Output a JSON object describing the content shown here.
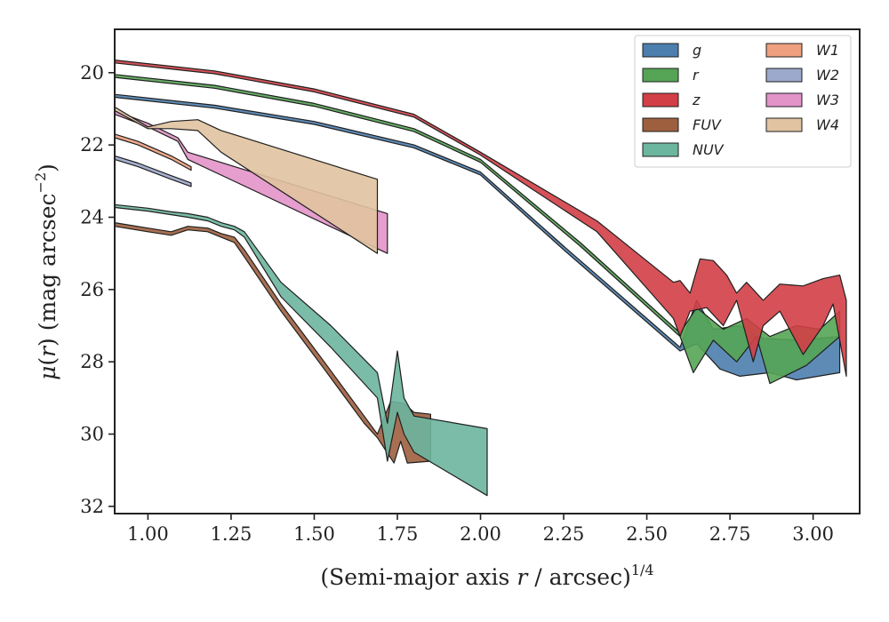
{
  "chart_data": {
    "type": "area",
    "title": "",
    "xlabel": "(Semi-major axis r / arcsec)",
    "xlabel_parts": {
      "prefix": "(Semi-major axis ",
      "var": "r",
      "mid": " / arcsec)",
      "sup": "1/4"
    },
    "ylabel": "μ(r) (mag arcsec−2)",
    "ylabel_parts": {
      "mu": "μ",
      "open": "(",
      "var": "r",
      "rest": ") (mag arcsec",
      "sup": "−2",
      "close": ")"
    },
    "xlim": [
      0.9,
      3.14
    ],
    "ylim": [
      32.2,
      18.8
    ],
    "y_inverted": true,
    "xticks": [
      "1.00",
      "1.25",
      "1.50",
      "1.75",
      "2.00",
      "2.25",
      "2.50",
      "2.75",
      "3.00"
    ],
    "xtick_values": [
      1.0,
      1.25,
      1.5,
      1.75,
      2.0,
      2.25,
      2.5,
      2.75,
      3.0
    ],
    "yticks": [
      "20",
      "22",
      "24",
      "26",
      "28",
      "30",
      "32"
    ],
    "ytick_values": [
      20,
      22,
      24,
      26,
      28,
      30,
      32
    ],
    "grid": false,
    "legend_position": "top-right",
    "legend_columns": 2,
    "legend": [
      "g",
      "r",
      "z",
      "FUV",
      "NUV",
      "W1",
      "W2",
      "W3",
      "W4"
    ],
    "series": [
      {
        "name": "g",
        "color": "#4C7EAE",
        "upper": [
          [
            0.9,
            20.6
          ],
          [
            1.2,
            20.9
          ],
          [
            1.5,
            21.35
          ],
          [
            1.8,
            22.0
          ],
          [
            2.0,
            22.75
          ],
          [
            2.25,
            24.8
          ],
          [
            2.6,
            27.6
          ],
          [
            2.65,
            26.3
          ],
          [
            2.7,
            27.1
          ],
          [
            2.78,
            27.0
          ],
          [
            2.85,
            27.35
          ],
          [
            2.95,
            27.4
          ],
          [
            3.08,
            27.3
          ]
        ],
        "lower": [
          [
            0.9,
            20.68
          ],
          [
            1.2,
            20.98
          ],
          [
            1.5,
            21.43
          ],
          [
            1.8,
            22.08
          ],
          [
            2.0,
            22.83
          ],
          [
            2.25,
            24.9
          ],
          [
            2.6,
            27.7
          ],
          [
            2.65,
            27.5
          ],
          [
            2.72,
            28.2
          ],
          [
            2.78,
            28.4
          ],
          [
            2.87,
            28.3
          ],
          [
            2.95,
            28.5
          ],
          [
            3.08,
            28.3
          ]
        ]
      },
      {
        "name": "r",
        "color": "#55A455",
        "upper": [
          [
            0.9,
            20.05
          ],
          [
            1.2,
            20.35
          ],
          [
            1.5,
            20.85
          ],
          [
            1.8,
            21.55
          ],
          [
            2.0,
            22.4
          ],
          [
            2.3,
            24.7
          ],
          [
            2.6,
            27.2
          ],
          [
            2.65,
            26.5
          ],
          [
            2.73,
            27.1
          ],
          [
            2.8,
            26.8
          ],
          [
            2.87,
            27.3
          ],
          [
            2.95,
            27.0
          ],
          [
            3.02,
            27.1
          ],
          [
            3.08,
            26.6
          ]
        ],
        "lower": [
          [
            0.9,
            20.13
          ],
          [
            1.2,
            20.43
          ],
          [
            1.5,
            20.93
          ],
          [
            1.8,
            21.63
          ],
          [
            2.0,
            22.48
          ],
          [
            2.3,
            24.8
          ],
          [
            2.6,
            27.3
          ],
          [
            2.64,
            28.3
          ],
          [
            2.7,
            27.4
          ],
          [
            2.77,
            28.0
          ],
          [
            2.83,
            27.3
          ],
          [
            2.87,
            28.6
          ],
          [
            2.98,
            28.1
          ],
          [
            3.08,
            27.3
          ]
        ]
      },
      {
        "name": "z",
        "color": "#D23F46",
        "upper": [
          [
            0.9,
            19.65
          ],
          [
            1.2,
            19.95
          ],
          [
            1.5,
            20.45
          ],
          [
            1.8,
            21.15
          ],
          [
            2.0,
            22.2
          ],
          [
            2.35,
            24.1
          ],
          [
            2.58,
            25.8
          ],
          [
            2.6,
            25.75
          ],
          [
            2.63,
            26.1
          ],
          [
            2.66,
            25.15
          ],
          [
            2.7,
            25.2
          ],
          [
            2.74,
            25.6
          ],
          [
            2.77,
            26.1
          ],
          [
            2.8,
            25.8
          ],
          [
            2.85,
            26.3
          ],
          [
            2.9,
            25.85
          ],
          [
            2.97,
            25.9
          ],
          [
            3.03,
            25.7
          ],
          [
            3.08,
            25.6
          ],
          [
            3.1,
            26.3
          ]
        ],
        "lower": [
          [
            0.9,
            19.73
          ],
          [
            1.2,
            20.03
          ],
          [
            1.5,
            20.53
          ],
          [
            1.8,
            21.23
          ],
          [
            2.0,
            22.28
          ],
          [
            2.35,
            24.4
          ],
          [
            2.58,
            26.8
          ],
          [
            2.6,
            27.3
          ],
          [
            2.63,
            26.6
          ],
          [
            2.68,
            26.5
          ],
          [
            2.73,
            27.0
          ],
          [
            2.77,
            26.3
          ],
          [
            2.82,
            28.0
          ],
          [
            2.85,
            27.0
          ],
          [
            2.9,
            26.6
          ],
          [
            2.97,
            27.8
          ],
          [
            3.03,
            27.0
          ],
          [
            3.06,
            26.4
          ],
          [
            3.1,
            28.4
          ]
        ]
      },
      {
        "name": "FUV",
        "color": "#9E5F3F",
        "upper": [
          [
            0.9,
            24.15
          ],
          [
            1.0,
            24.3
          ],
          [
            1.07,
            24.4
          ],
          [
            1.12,
            24.25
          ],
          [
            1.18,
            24.3
          ],
          [
            1.22,
            24.45
          ],
          [
            1.26,
            24.55
          ],
          [
            1.29,
            24.9
          ],
          [
            1.4,
            26.4
          ],
          [
            1.53,
            28.0
          ],
          [
            1.65,
            29.5
          ],
          [
            1.69,
            30.0
          ],
          [
            1.73,
            29.1
          ],
          [
            1.77,
            29.15
          ],
          [
            1.8,
            29.4
          ],
          [
            1.85,
            29.45
          ]
        ],
        "lower": [
          [
            0.9,
            24.25
          ],
          [
            1.0,
            24.4
          ],
          [
            1.07,
            24.5
          ],
          [
            1.12,
            24.35
          ],
          [
            1.18,
            24.4
          ],
          [
            1.22,
            24.55
          ],
          [
            1.26,
            24.7
          ],
          [
            1.29,
            25.1
          ],
          [
            1.4,
            26.6
          ],
          [
            1.53,
            28.2
          ],
          [
            1.65,
            29.7
          ],
          [
            1.69,
            30.1
          ],
          [
            1.74,
            30.8
          ],
          [
            1.76,
            30.2
          ],
          [
            1.78,
            30.8
          ],
          [
            1.85,
            30.75
          ]
        ]
      },
      {
        "name": "NUV",
        "color": "#6CB59E",
        "upper": [
          [
            0.9,
            23.65
          ],
          [
            1.0,
            23.75
          ],
          [
            1.07,
            23.85
          ],
          [
            1.12,
            23.9
          ],
          [
            1.18,
            24.0
          ],
          [
            1.22,
            24.15
          ],
          [
            1.26,
            24.25
          ],
          [
            1.29,
            24.4
          ],
          [
            1.4,
            25.8
          ],
          [
            1.55,
            27.0
          ],
          [
            1.69,
            28.3
          ],
          [
            1.72,
            29.7
          ],
          [
            1.75,
            27.7
          ],
          [
            1.77,
            29.0
          ],
          [
            1.8,
            29.5
          ],
          [
            2.02,
            29.85
          ]
        ],
        "lower": [
          [
            0.9,
            23.73
          ],
          [
            1.0,
            23.83
          ],
          [
            1.07,
            23.93
          ],
          [
            1.12,
            24.0
          ],
          [
            1.18,
            24.1
          ],
          [
            1.22,
            24.25
          ],
          [
            1.26,
            24.35
          ],
          [
            1.29,
            24.55
          ],
          [
            1.4,
            26.2
          ],
          [
            1.55,
            27.6
          ],
          [
            1.69,
            29.0
          ],
          [
            1.72,
            30.75
          ],
          [
            1.75,
            29.4
          ],
          [
            1.77,
            30.0
          ],
          [
            1.8,
            30.5
          ],
          [
            2.02,
            31.7
          ]
        ]
      },
      {
        "name": "W1",
        "color": "#EFA07E",
        "upper": [
          [
            0.9,
            21.7
          ],
          [
            0.97,
            21.9
          ],
          [
            1.07,
            22.3
          ],
          [
            1.13,
            22.6
          ]
        ],
        "lower": [
          [
            0.9,
            21.8
          ],
          [
            0.97,
            22.0
          ],
          [
            1.07,
            22.4
          ],
          [
            1.13,
            22.7
          ]
        ]
      },
      {
        "name": "W2",
        "color": "#9CA8CC",
        "upper": [
          [
            0.9,
            22.3
          ],
          [
            0.97,
            22.5
          ],
          [
            1.07,
            22.85
          ],
          [
            1.13,
            23.05
          ]
        ],
        "lower": [
          [
            0.9,
            22.4
          ],
          [
            0.97,
            22.6
          ],
          [
            1.07,
            22.95
          ],
          [
            1.13,
            23.15
          ]
        ]
      },
      {
        "name": "W3",
        "color": "#E293C8",
        "upper": [
          [
            0.9,
            21.05
          ],
          [
            1.0,
            21.4
          ],
          [
            1.09,
            21.8
          ],
          [
            1.12,
            22.2
          ],
          [
            1.72,
            23.9
          ]
        ],
        "lower": [
          [
            0.9,
            21.15
          ],
          [
            1.0,
            21.5
          ],
          [
            1.09,
            21.9
          ],
          [
            1.12,
            22.4
          ],
          [
            1.72,
            25.0
          ]
        ]
      },
      {
        "name": "W4",
        "color": "#E0C3A0",
        "upper": [
          [
            0.9,
            20.95
          ],
          [
            1.0,
            21.5
          ],
          [
            1.07,
            21.35
          ],
          [
            1.15,
            21.3
          ],
          [
            1.22,
            21.6
          ],
          [
            1.69,
            22.95
          ]
        ],
        "lower": [
          [
            0.9,
            21.05
          ],
          [
            1.0,
            21.55
          ],
          [
            1.07,
            21.55
          ],
          [
            1.15,
            21.6
          ],
          [
            1.22,
            22.2
          ],
          [
            1.69,
            25.0
          ]
        ]
      }
    ]
  }
}
